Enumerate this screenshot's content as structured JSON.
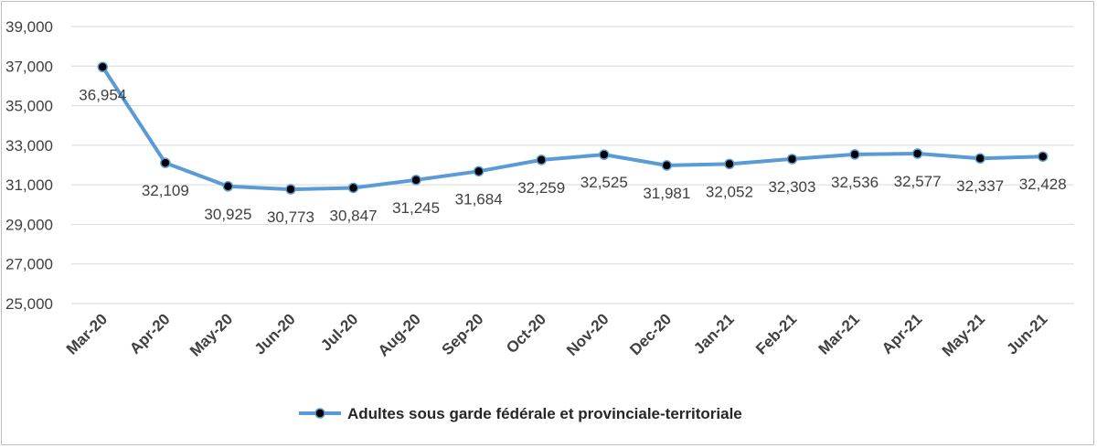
{
  "chart_data": {
    "type": "line",
    "categories": [
      "Mar-20",
      "Apr-20",
      "May-20",
      "Jun-20",
      "Jul-20",
      "Aug-20",
      "Sep-20",
      "Oct-20",
      "Nov-20",
      "Dec-20",
      "Jan-21",
      "Feb-21",
      "Mar-21",
      "Apr-21",
      "May-21",
      "Jun-21"
    ],
    "series": [
      {
        "name": "Adultes sous garde fédérale et provinciale-territoriale",
        "values": [
          36954,
          32109,
          30925,
          30773,
          30847,
          31245,
          31684,
          32259,
          32525,
          31981,
          32052,
          32303,
          32536,
          32577,
          32337,
          32428
        ],
        "labels": [
          "36,954",
          "32,109",
          "30,925",
          "30,773",
          "30,847",
          "31,245",
          "31,684",
          "32,259",
          "32,525",
          "31,981",
          "32,052",
          "32,303",
          "32,536",
          "32,577",
          "32,337",
          "32,428"
        ],
        "color": "#5b9bd5",
        "marker_color": "#000000"
      }
    ],
    "yticks": [
      "25,000",
      "27,000",
      "29,000",
      "31,000",
      "33,000",
      "35,000",
      "37,000",
      "39,000"
    ],
    "ylim": [
      25000,
      39000
    ],
    "ystep": 2000,
    "grid": true,
    "legend": "bottom",
    "title": "",
    "xlabel": "",
    "ylabel": ""
  }
}
